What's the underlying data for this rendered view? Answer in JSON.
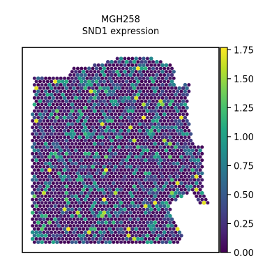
{
  "chart_data": {
    "type": "scatter",
    "title": "MGH258",
    "subtitle": "SND1 expression",
    "xlabel": "",
    "ylabel": "",
    "grid": false,
    "colormap": "viridis",
    "colorbar": {
      "min": 0.0,
      "max": 1.77,
      "ticks": [
        "0.00",
        "0.25",
        "0.50",
        "0.75",
        "1.00",
        "1.25",
        "1.50",
        "1.75"
      ]
    },
    "highlight_values": [
      1.75,
      1.72,
      1.7,
      1.68,
      1.66,
      1.6,
      1.55,
      1.45,
      1.35,
      1.3
    ]
  }
}
